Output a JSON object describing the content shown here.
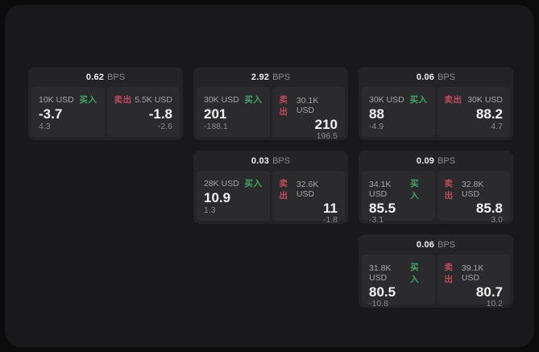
{
  "labels": {
    "bps_unit": "BPS",
    "buy": "买入",
    "sell": "卖出"
  },
  "colors": {
    "buy_green": "#3fa569",
    "sell_red": "#c04a5f",
    "canvas": "#19191b",
    "card": "#242427",
    "panel": "#2b2b2e"
  },
  "cards": [
    {
      "bps": "0.62",
      "buy": {
        "amount": "10K USD",
        "price": "-3.7",
        "sub": "4.3"
      },
      "sell": {
        "amount": "5.5K USD",
        "price": "-1.8",
        "sub": "-2.6"
      }
    },
    {
      "bps": "2.92",
      "buy": {
        "amount": "30K USD",
        "price": "201",
        "sub": "-188.1"
      },
      "sell": {
        "amount": "30.1K USD",
        "price": "210",
        "sub": "196.5"
      }
    },
    {
      "bps": "0.06",
      "buy": {
        "amount": "30K USD",
        "price": "88",
        "sub": "-4.9"
      },
      "sell": {
        "amount": "30K USD",
        "price": "88.2",
        "sub": "4.7"
      }
    },
    {
      "bps": "0.03",
      "buy": {
        "amount": "28K USD",
        "price": "10.9",
        "sub": "1.3"
      },
      "sell": {
        "amount": "32.6K USD",
        "price": "11",
        "sub": "-1.8"
      }
    },
    {
      "bps": "0.09",
      "buy": {
        "amount": "34.1K USD",
        "price": "85.5",
        "sub": "-3.1"
      },
      "sell": {
        "amount": "32.8K USD",
        "price": "85.8",
        "sub": "3.0"
      }
    },
    {
      "bps": "0.06",
      "buy": {
        "amount": "31.8K USD",
        "price": "80.5",
        "sub": "-10.8"
      },
      "sell": {
        "amount": "39.1K USD",
        "price": "80.7",
        "sub": "10.2"
      }
    }
  ]
}
